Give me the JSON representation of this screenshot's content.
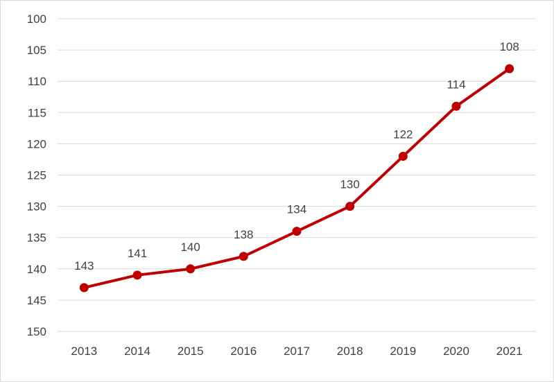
{
  "chart_data": {
    "type": "line",
    "title": "",
    "xlabel": "",
    "ylabel": "",
    "categories": [
      "2013",
      "2014",
      "2015",
      "2016",
      "2017",
      "2018",
      "2019",
      "2020",
      "2021"
    ],
    "series": [
      {
        "values": [
          143,
          141,
          140,
          138,
          134,
          130,
          122,
          114,
          108
        ]
      }
    ],
    "ylim": [
      100,
      150
    ],
    "y_axis_reversed": true,
    "y_ticks": [
      100,
      105,
      110,
      115,
      120,
      125,
      130,
      135,
      140,
      145,
      150
    ],
    "grid": true,
    "legend": "none",
    "data_labels": true,
    "colors": {
      "line": "#c00000",
      "grid": "#d9d9d9",
      "text": "#404040"
    }
  }
}
